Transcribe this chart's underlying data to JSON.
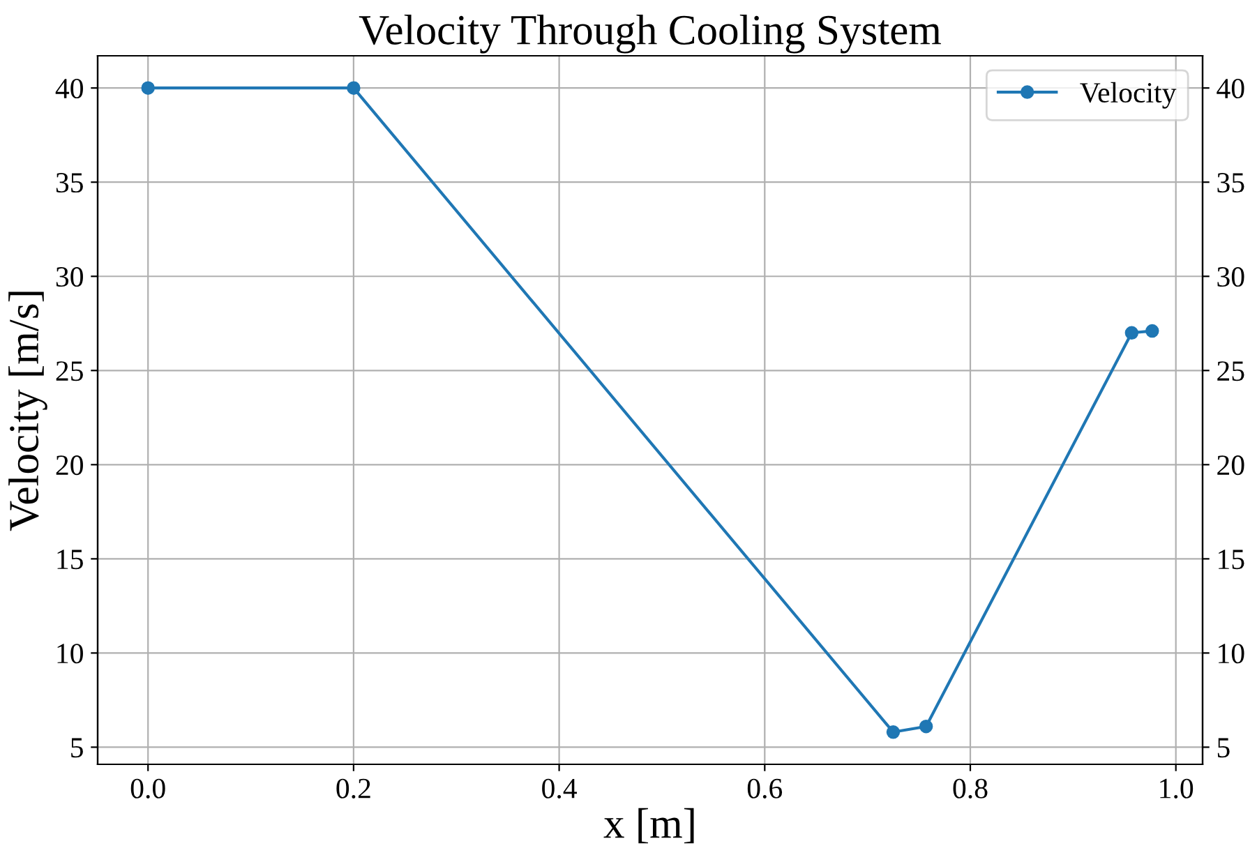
{
  "chart_data": {
    "type": "line",
    "title": "Velocity Through Cooling System",
    "xlabel": "x [m]",
    "ylabel": "Velocity [m/s]",
    "x": [
      0.0,
      0.2,
      0.725,
      0.757,
      0.957,
      0.977
    ],
    "series": [
      {
        "name": "Velocity",
        "color": "#1f77b4",
        "values": [
          40,
          40,
          5.8,
          6.1,
          27.0,
          27.1
        ],
        "marker": "circle"
      }
    ],
    "xlim": [
      -0.049,
      1.026
    ],
    "xticks": [
      {
        "value": 0,
        "label": "0.0"
      },
      {
        "value": 0.2,
        "label": "0.2"
      },
      {
        "value": 0.4,
        "label": "0.4"
      },
      {
        "value": 0.6,
        "label": "0.6"
      },
      {
        "value": 0.8,
        "label": "0.8"
      },
      {
        "value": 1.0,
        "label": "1.0"
      }
    ],
    "ylim": [
      4.09,
      41.71
    ],
    "yticks": [
      5,
      10,
      15,
      20,
      25,
      30,
      35,
      40
    ],
    "y2lim": [
      4.09,
      41.71
    ],
    "y2ticks": [
      5,
      10,
      15,
      20,
      25,
      30,
      35,
      40
    ],
    "grid": true,
    "legend": "top right"
  }
}
